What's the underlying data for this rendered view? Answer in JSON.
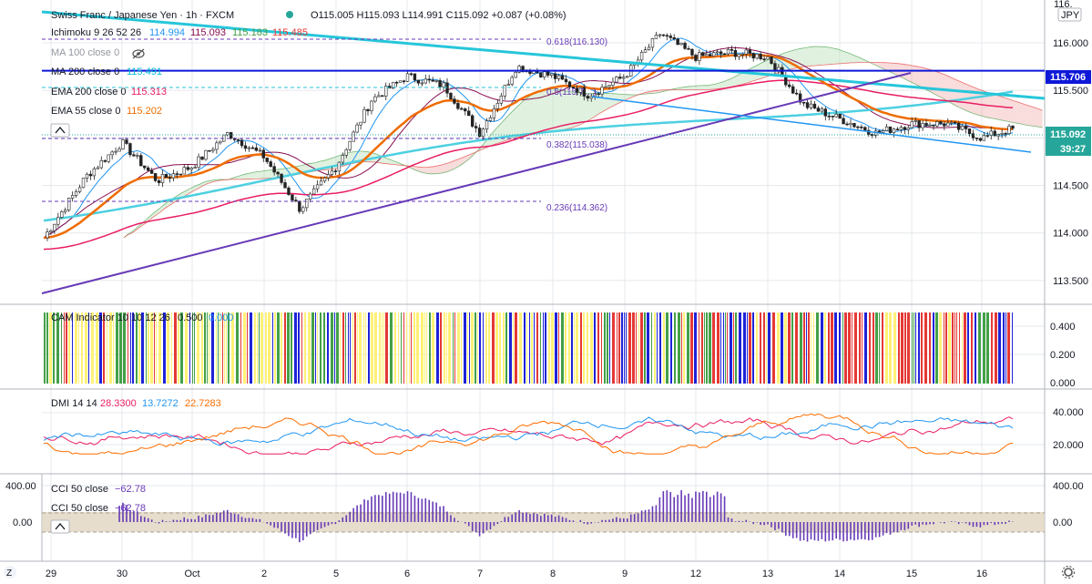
{
  "header": {
    "symbol": "Swiss Franc / Japanese Yen · 1h · FXCM",
    "ohlc": "O115.005 H115.093 L114.991 C115.092 +0.087 (+0.08%)",
    "currency": "JPY"
  },
  "legend": {
    "ichimoku": {
      "label": "Ichimoku 9 26 52 26",
      "v1": "114.994",
      "v2": "115.093",
      "v3": "115.183",
      "v4": "115.485"
    },
    "ma100": {
      "label": "MA 100 close 0"
    },
    "ma200": {
      "label": "MA 200 close 0",
      "value": "115.491"
    },
    "ema200": {
      "label": "EMA 200 close 0",
      "value": "115.313"
    },
    "ema55": {
      "label": "EMA 55 close 0",
      "value": "115.202"
    }
  },
  "fib_labels": {
    "f618": "0.618(116.130)",
    "f5": "0.5(115.7…)",
    "f382": "0.382(115.038)",
    "f236": "0.236(114.362)"
  },
  "price_tags": {
    "level": "115.706",
    "last": "115.092",
    "countdown": "39:27"
  },
  "price_axis": [
    "116.000",
    "115.500",
    "115.000",
    "114.500",
    "114.000",
    "113.500"
  ],
  "price_axis_top": "116.",
  "cam": {
    "label": "CAM Indicator 10 10 12 26",
    "v1": "0.500",
    "v2": "0.000",
    "axis": [
      "0.400",
      "0.200",
      "0.000"
    ]
  },
  "dmi": {
    "label": "DMI 14 14",
    "v1": "28.3300",
    "v2": "13.7272",
    "v3": "22.7283",
    "axis": [
      "40.000",
      "20.000"
    ]
  },
  "cci": {
    "label1": "CCI 50 close",
    "val1": "−62.78",
    "label2": "CCI 50 close",
    "val2": "−62.78",
    "axis": [
      "400.00",
      "0.00"
    ]
  },
  "cci_left_axis": [
    "400.00",
    "0.00"
  ],
  "time_axis": [
    "29",
    "30",
    "Oct",
    "2",
    "5",
    "6",
    "7",
    "8",
    "9",
    "12",
    "13",
    "14",
    "15",
    "16"
  ],
  "colors": {
    "ichimoku_conv": "#2196f3",
    "ichimoku_base": "#880e4f",
    "ma100": "#00bcd4",
    "ema200": "#e91e63",
    "ema55": "#ef6c00",
    "level": "#0d18d8",
    "cci": "#673ab7",
    "dmi_plus": "#e91e63",
    "dmi_minus": "#2196f3",
    "adx": "#ff6d00"
  },
  "chart_data": {
    "type": "candlestick",
    "ylim": [
      113.25,
      116.45
    ],
    "x_dates": [
      "29",
      "30",
      "Oct",
      "2",
      "5",
      "6",
      "7",
      "8",
      "9",
      "12",
      "13",
      "14",
      "15",
      "16"
    ],
    "close_path": [
      {
        "t": "29",
        "price": 113.95
      },
      {
        "t": "29.5",
        "price": 114.6
      },
      {
        "t": "30",
        "price": 114.95
      },
      {
        "t": "30.5",
        "price": 114.55
      },
      {
        "t": "Oct",
        "price": 114.7
      },
      {
        "t": "Oct.5",
        "price": 115.05
      },
      {
        "t": "2",
        "price": 114.8
      },
      {
        "t": "2.5",
        "price": 114.25
      },
      {
        "t": "5",
        "price": 114.7
      },
      {
        "t": "5.5",
        "price": 115.4
      },
      {
        "t": "6",
        "price": 115.65
      },
      {
        "t": "6.5",
        "price": 115.55
      },
      {
        "t": "7",
        "price": 115.05
      },
      {
        "t": "7.5",
        "price": 115.75
      },
      {
        "t": "8",
        "price": 115.65
      },
      {
        "t": "8.5",
        "price": 115.45
      },
      {
        "t": "9",
        "price": 115.65
      },
      {
        "t": "9.5",
        "price": 116.1
      },
      {
        "t": "12",
        "price": 115.85
      },
      {
        "t": "12.5",
        "price": 115.9
      },
      {
        "t": "13",
        "price": 115.85
      },
      {
        "t": "13.5",
        "price": 115.35
      },
      {
        "t": "14",
        "price": 115.2
      },
      {
        "t": "14.5",
        "price": 115.05
      },
      {
        "t": "15",
        "price": 115.15
      },
      {
        "t": "15.5",
        "price": 115.15
      },
      {
        "t": "16",
        "price": 115.0
      },
      {
        "t": "16.4",
        "price": 115.09
      }
    ],
    "levels": {
      "horizontal": 115.706,
      "last": 115.092,
      "fib_618": 116.13,
      "fib_382": 115.038,
      "fib_236": 114.362
    }
  }
}
